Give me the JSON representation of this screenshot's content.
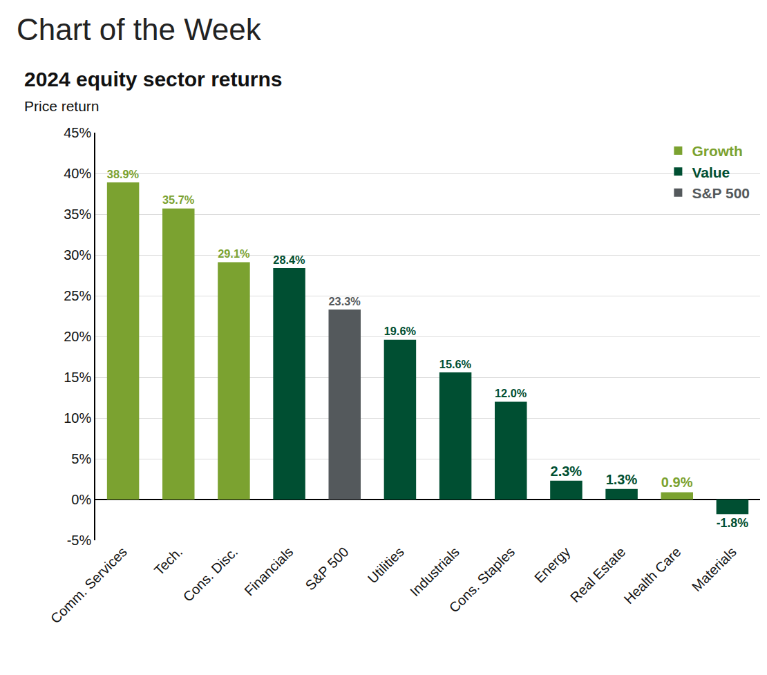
{
  "chart_data": {
    "type": "bar",
    "title": "2024 equity sector returns",
    "subtitle": "Price return",
    "annotations": [
      "Chart of the Week"
    ],
    "categories": [
      "Comm. Services",
      "Tech.",
      "Cons. Disc.",
      "Financials",
      "S&P 500",
      "Utilities",
      "Industrials",
      "Cons. Staples",
      "Energy",
      "Real Estate",
      "Health Care",
      "Materials"
    ],
    "series": [
      {
        "name": "Growth",
        "color": "#7ba230",
        "values": [
          38.9,
          35.7,
          29.1,
          null,
          null,
          null,
          null,
          null,
          null,
          null,
          0.9,
          null
        ],
        "value_labels": [
          "38.9%",
          "35.7%",
          "29.1%",
          null,
          null,
          null,
          null,
          null,
          null,
          null,
          "0.9%",
          null
        ]
      },
      {
        "name": "Value",
        "color": "#004f32",
        "values": [
          null,
          null,
          null,
          28.4,
          null,
          19.6,
          15.6,
          12.0,
          2.3,
          1.3,
          null,
          -1.8
        ],
        "value_labels": [
          null,
          null,
          null,
          "28.4%",
          null,
          "19.6%",
          "15.6%",
          "12.0%",
          "2.3%",
          "1.3%",
          null,
          "-1.8%"
        ]
      },
      {
        "name": "S&P 500",
        "color": "#54595c",
        "values": [
          null,
          null,
          null,
          null,
          23.3,
          null,
          null,
          null,
          null,
          null,
          null,
          null
        ],
        "value_labels": [
          null,
          null,
          null,
          null,
          "23.3%",
          null,
          null,
          null,
          null,
          null,
          null,
          null
        ]
      }
    ],
    "ylim": [
      -5,
      45
    ],
    "yticks": [
      {
        "value": -5,
        "label": "-5%"
      },
      {
        "value": 0,
        "label": "0%"
      },
      {
        "value": 5,
        "label": "5%"
      },
      {
        "value": 10,
        "label": "10%"
      },
      {
        "value": 15,
        "label": "15%"
      },
      {
        "value": 20,
        "label": "20%"
      },
      {
        "value": 25,
        "label": "25%"
      },
      {
        "value": 30,
        "label": "30%"
      },
      {
        "value": 35,
        "label": "35%"
      },
      {
        "value": 40,
        "label": "40%"
      },
      {
        "value": 45,
        "label": "45%"
      }
    ],
    "grid": true,
    "legend": "upper right",
    "data_labels": true
  }
}
